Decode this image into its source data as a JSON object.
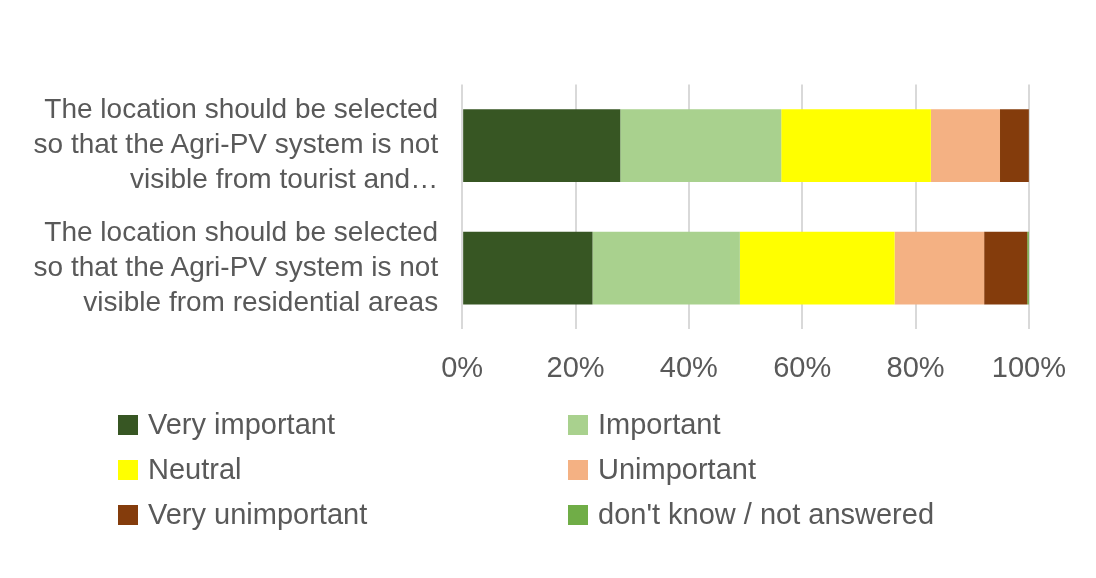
{
  "chart_data": {
    "type": "bar",
    "orientation": "horizontal",
    "stacked": true,
    "categories": [
      "The location should be selected so that the Agri-PV system is not visible from tourist and…",
      "The location should be selected so that the Agri-PV system is not visible from residential areas"
    ],
    "series": [
      {
        "name": "Very important",
        "color": "#375623",
        "values": [
          27.9,
          23.0
        ]
      },
      {
        "name": "Important",
        "color": "#a9d18e",
        "values": [
          28.4,
          26.0
        ]
      },
      {
        "name": "Neutral",
        "color": "#ffff00",
        "values": [
          26.4,
          27.3
        ]
      },
      {
        "name": "Unimportant",
        "color": "#f4b183",
        "values": [
          12.2,
          15.8
        ]
      },
      {
        "name": "Very unimportant",
        "color": "#843c0c",
        "values": [
          5.1,
          7.6
        ]
      },
      {
        "name": "don't know / not answered",
        "color": "#70ad47",
        "values": [
          0,
          0.3
        ]
      }
    ],
    "xlim": [
      0,
      100
    ],
    "xticks": [
      {
        "value": 0,
        "label": "0%"
      },
      {
        "value": 20,
        "label": "20%"
      },
      {
        "value": 40,
        "label": "40%"
      },
      {
        "value": 60,
        "label": "60%"
      },
      {
        "value": 80,
        "label": "80%"
      },
      {
        "value": 100,
        "label": "100%"
      }
    ],
    "grid": "x",
    "legend": "bottom"
  }
}
